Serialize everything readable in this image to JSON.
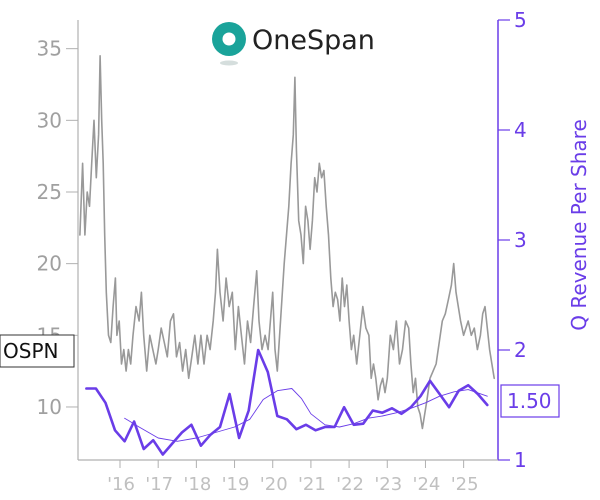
{
  "brand": {
    "name": "OneSpan",
    "logo_colors": [
      "#1aa39a",
      "#0f6f6a"
    ]
  },
  "ticker": "OSPN",
  "chart_data": {
    "type": "line",
    "title": "",
    "xlabel": "",
    "ylabel_left": "",
    "ylabel_right": "Q Revenue Per Share",
    "x_range": [
      2014.9,
      2025.9
    ],
    "y_left_range": [
      6.3,
      37
    ],
    "y_right_range": [
      1,
      5
    ],
    "grid": false,
    "x_ticks": [
      {
        "x": 2016,
        "label": "'16"
      },
      {
        "x": 2017,
        "label": "'17"
      },
      {
        "x": 2018,
        "label": "'18"
      },
      {
        "x": 2019,
        "label": "'19"
      },
      {
        "x": 2020,
        "label": "'20"
      },
      {
        "x": 2021,
        "label": "'21"
      },
      {
        "x": 2022,
        "label": "'22"
      },
      {
        "x": 2023,
        "label": "'23"
      },
      {
        "x": 2024,
        "label": "'24"
      },
      {
        "x": 2025,
        "label": "'25"
      }
    ],
    "y_left_ticks": [
      10,
      15,
      20,
      25,
      30,
      35
    ],
    "y_right_ticks": [
      1,
      2,
      3,
      4,
      5
    ],
    "current_revenue_label": "1.50",
    "series": [
      {
        "axis": "left",
        "color": "#999999",
        "points": [
          [
            2014.95,
            22
          ],
          [
            2015.02,
            27
          ],
          [
            2015.08,
            22
          ],
          [
            2015.14,
            25
          ],
          [
            2015.2,
            24
          ],
          [
            2015.26,
            27
          ],
          [
            2015.32,
            30
          ],
          [
            2015.38,
            26
          ],
          [
            2015.44,
            29
          ],
          [
            2015.48,
            34.5
          ],
          [
            2015.52,
            30
          ],
          [
            2015.56,
            27
          ],
          [
            2015.6,
            22
          ],
          [
            2015.64,
            18
          ],
          [
            2015.7,
            15
          ],
          [
            2015.76,
            14.5
          ],
          [
            2015.82,
            17
          ],
          [
            2015.88,
            19
          ],
          [
            2015.92,
            15
          ],
          [
            2015.98,
            16
          ],
          [
            2016.04,
            13
          ],
          [
            2016.1,
            14
          ],
          [
            2016.16,
            12.5
          ],
          [
            2016.22,
            14
          ],
          [
            2016.28,
            13
          ],
          [
            2016.34,
            15
          ],
          [
            2016.42,
            17
          ],
          [
            2016.5,
            16
          ],
          [
            2016.56,
            18
          ],
          [
            2016.62,
            15
          ],
          [
            2016.7,
            12.5
          ],
          [
            2016.78,
            15
          ],
          [
            2016.86,
            14
          ],
          [
            2016.94,
            13
          ],
          [
            2017.0,
            14
          ],
          [
            2017.08,
            15.5
          ],
          [
            2017.16,
            14.5
          ],
          [
            2017.24,
            13.5
          ],
          [
            2017.32,
            16
          ],
          [
            2017.4,
            16.5
          ],
          [
            2017.48,
            13.5
          ],
          [
            2017.56,
            14.5
          ],
          [
            2017.64,
            12.5
          ],
          [
            2017.72,
            14
          ],
          [
            2017.8,
            12
          ],
          [
            2017.88,
            13.5
          ],
          [
            2017.96,
            15
          ],
          [
            2018.04,
            13
          ],
          [
            2018.12,
            15
          ],
          [
            2018.2,
            13
          ],
          [
            2018.28,
            15
          ],
          [
            2018.36,
            14
          ],
          [
            2018.44,
            16
          ],
          [
            2018.5,
            18
          ],
          [
            2018.55,
            21
          ],
          [
            2018.62,
            18
          ],
          [
            2018.7,
            16
          ],
          [
            2018.78,
            19
          ],
          [
            2018.86,
            17
          ],
          [
            2018.94,
            18
          ],
          [
            2019.02,
            14
          ],
          [
            2019.1,
            17
          ],
          [
            2019.18,
            15
          ],
          [
            2019.26,
            13
          ],
          [
            2019.34,
            16
          ],
          [
            2019.42,
            14.5
          ],
          [
            2019.5,
            17
          ],
          [
            2019.58,
            19.5
          ],
          [
            2019.64,
            16
          ],
          [
            2019.72,
            14
          ],
          [
            2019.8,
            15
          ],
          [
            2019.88,
            14
          ],
          [
            2019.94,
            16
          ],
          [
            2020.0,
            18
          ],
          [
            2020.06,
            14
          ],
          [
            2020.12,
            12.5
          ],
          [
            2020.18,
            15
          ],
          [
            2020.24,
            17.5
          ],
          [
            2020.3,
            20
          ],
          [
            2020.36,
            22
          ],
          [
            2020.42,
            24
          ],
          [
            2020.48,
            27
          ],
          [
            2020.54,
            29
          ],
          [
            2020.58,
            33
          ],
          [
            2020.62,
            28
          ],
          [
            2020.68,
            23
          ],
          [
            2020.74,
            22
          ],
          [
            2020.8,
            20
          ],
          [
            2020.86,
            24
          ],
          [
            2020.92,
            23
          ],
          [
            2020.98,
            21
          ],
          [
            2021.04,
            23
          ],
          [
            2021.1,
            26
          ],
          [
            2021.16,
            25
          ],
          [
            2021.22,
            27
          ],
          [
            2021.28,
            26
          ],
          [
            2021.34,
            26.5
          ],
          [
            2021.4,
            24
          ],
          [
            2021.46,
            22
          ],
          [
            2021.52,
            19
          ],
          [
            2021.58,
            17
          ],
          [
            2021.64,
            18
          ],
          [
            2021.7,
            17.5
          ],
          [
            2021.76,
            16
          ],
          [
            2021.82,
            19
          ],
          [
            2021.88,
            17
          ],
          [
            2021.94,
            18.5
          ],
          [
            2022.0,
            16
          ],
          [
            2022.06,
            14
          ],
          [
            2022.12,
            15
          ],
          [
            2022.2,
            13
          ],
          [
            2022.28,
            15
          ],
          [
            2022.36,
            17
          ],
          [
            2022.44,
            15.5
          ],
          [
            2022.52,
            15
          ],
          [
            2022.58,
            12
          ],
          [
            2022.64,
            13
          ],
          [
            2022.7,
            12
          ],
          [
            2022.76,
            10.5
          ],
          [
            2022.82,
            11.5
          ],
          [
            2022.88,
            12
          ],
          [
            2022.94,
            11
          ],
          [
            2023.0,
            12
          ],
          [
            2023.08,
            15
          ],
          [
            2023.16,
            14
          ],
          [
            2023.24,
            16
          ],
          [
            2023.32,
            13
          ],
          [
            2023.4,
            14
          ],
          [
            2023.48,
            16
          ],
          [
            2023.56,
            15.5
          ],
          [
            2023.62,
            13
          ],
          [
            2023.68,
            11
          ],
          [
            2023.74,
            12
          ],
          [
            2023.8,
            10
          ],
          [
            2023.86,
            9.5
          ],
          [
            2023.92,
            8.5
          ],
          [
            2023.98,
            9.5
          ],
          [
            2024.04,
            10.5
          ],
          [
            2024.12,
            12
          ],
          [
            2024.2,
            12.5
          ],
          [
            2024.28,
            13
          ],
          [
            2024.36,
            14.5
          ],
          [
            2024.44,
            16
          ],
          [
            2024.52,
            16.5
          ],
          [
            2024.6,
            17.5
          ],
          [
            2024.68,
            18.5
          ],
          [
            2024.74,
            20
          ],
          [
            2024.8,
            18
          ],
          [
            2024.86,
            17
          ],
          [
            2024.92,
            16
          ],
          [
            2025.0,
            15
          ],
          [
            2025.06,
            15.5
          ],
          [
            2025.12,
            16
          ],
          [
            2025.2,
            15
          ],
          [
            2025.28,
            15.5
          ],
          [
            2025.36,
            14
          ],
          [
            2025.44,
            15
          ],
          [
            2025.5,
            16.5
          ],
          [
            2025.56,
            17
          ],
          [
            2025.62,
            15.5
          ],
          [
            2025.68,
            14
          ],
          [
            2025.74,
            13
          ],
          [
            2025.8,
            12
          ]
        ]
      },
      {
        "axis": "right",
        "color": "#6a3de8",
        "points": [
          [
            2015.12,
            1.65
          ],
          [
            2015.37,
            1.65
          ],
          [
            2015.62,
            1.52
          ],
          [
            2015.87,
            1.27
          ],
          [
            2016.12,
            1.17
          ],
          [
            2016.37,
            1.35
          ],
          [
            2016.62,
            1.1
          ],
          [
            2016.87,
            1.18
          ],
          [
            2017.12,
            1.05
          ],
          [
            2017.37,
            1.15
          ],
          [
            2017.62,
            1.25
          ],
          [
            2017.87,
            1.32
          ],
          [
            2018.12,
            1.13
          ],
          [
            2018.37,
            1.23
          ],
          [
            2018.62,
            1.3
          ],
          [
            2018.87,
            1.6
          ],
          [
            2019.12,
            1.2
          ],
          [
            2019.37,
            1.45
          ],
          [
            2019.62,
            2.0
          ],
          [
            2019.87,
            1.8
          ],
          [
            2020.12,
            1.4
          ],
          [
            2020.37,
            1.37
          ],
          [
            2020.62,
            1.28
          ],
          [
            2020.87,
            1.32
          ],
          [
            2021.12,
            1.27
          ],
          [
            2021.37,
            1.3
          ],
          [
            2021.62,
            1.3
          ],
          [
            2021.87,
            1.48
          ],
          [
            2022.12,
            1.32
          ],
          [
            2022.37,
            1.33
          ],
          [
            2022.62,
            1.45
          ],
          [
            2022.87,
            1.43
          ],
          [
            2023.12,
            1.47
          ],
          [
            2023.37,
            1.42
          ],
          [
            2023.62,
            1.48
          ],
          [
            2023.87,
            1.58
          ],
          [
            2024.12,
            1.72
          ],
          [
            2024.37,
            1.6
          ],
          [
            2024.62,
            1.48
          ],
          [
            2024.87,
            1.63
          ],
          [
            2025.12,
            1.68
          ],
          [
            2025.37,
            1.6
          ],
          [
            2025.62,
            1.5
          ]
        ]
      },
      {
        "axis": "right",
        "color": "#6a3de8",
        "points": [
          [
            2016.12,
            1.38
          ],
          [
            2016.5,
            1.3
          ],
          [
            2017.0,
            1.2
          ],
          [
            2017.5,
            1.17
          ],
          [
            2018.0,
            1.2
          ],
          [
            2018.5,
            1.25
          ],
          [
            2019.0,
            1.3
          ],
          [
            2019.4,
            1.37
          ],
          [
            2019.75,
            1.55
          ],
          [
            2020.12,
            1.63
          ],
          [
            2020.5,
            1.65
          ],
          [
            2020.75,
            1.56
          ],
          [
            2021.0,
            1.42
          ],
          [
            2021.37,
            1.32
          ],
          [
            2021.75,
            1.3
          ],
          [
            2022.12,
            1.33
          ],
          [
            2022.5,
            1.38
          ],
          [
            2022.87,
            1.4
          ],
          [
            2023.25,
            1.43
          ],
          [
            2023.62,
            1.47
          ],
          [
            2024.0,
            1.52
          ],
          [
            2024.37,
            1.58
          ],
          [
            2024.75,
            1.62
          ],
          [
            2025.12,
            1.64
          ],
          [
            2025.62,
            1.58
          ]
        ]
      }
    ]
  }
}
